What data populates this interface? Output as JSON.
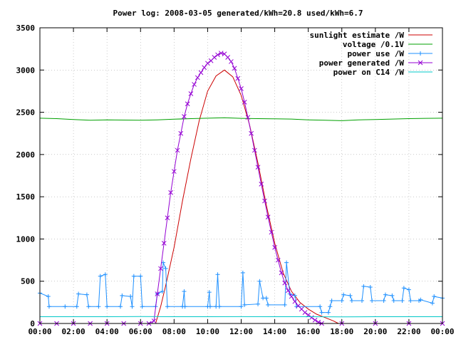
{
  "chart_data": {
    "type": "line",
    "title": "Power log: 2008-03-05 generated/kWh=20.8 used/kWh=6.7",
    "xlabel": "",
    "ylabel": "",
    "xlim": [
      0,
      24
    ],
    "ylim": [
      0,
      3500
    ],
    "x_ticks": [
      {
        "value": 0,
        "label": "00:00"
      },
      {
        "value": 2,
        "label": "02:00"
      },
      {
        "value": 4,
        "label": "04:00"
      },
      {
        "value": 6,
        "label": "06:00"
      },
      {
        "value": 8,
        "label": "08:00"
      },
      {
        "value": 10,
        "label": "10:00"
      },
      {
        "value": 12,
        "label": "12:00"
      },
      {
        "value": 14,
        "label": "14:00"
      },
      {
        "value": 16,
        "label": "16:00"
      },
      {
        "value": 18,
        "label": "18:00"
      },
      {
        "value": 20,
        "label": "20:00"
      },
      {
        "value": 22,
        "label": "22:00"
      },
      {
        "value": 24,
        "label": "00:00"
      }
    ],
    "y_ticks": [
      {
        "value": 0,
        "label": "0"
      },
      {
        "value": 500,
        "label": "500"
      },
      {
        "value": 1000,
        "label": "1000"
      },
      {
        "value": 1500,
        "label": "1500"
      },
      {
        "value": 2000,
        "label": "2000"
      },
      {
        "value": 2500,
        "label": "2500"
      },
      {
        "value": 3000,
        "label": "3000"
      },
      {
        "value": 3500,
        "label": "3500"
      }
    ],
    "grid": true,
    "legend_position": "top-right",
    "series": [
      {
        "name": "sunlight estimate /W",
        "color": "#cc0000",
        "style": "line",
        "points": [
          [
            6.9,
            0
          ],
          [
            7.2,
            200
          ],
          [
            7.5,
            450
          ],
          [
            8.0,
            900
          ],
          [
            8.5,
            1450
          ],
          [
            9.0,
            1950
          ],
          [
            9.5,
            2400
          ],
          [
            10.0,
            2750
          ],
          [
            10.5,
            2930
          ],
          [
            11.0,
            3000
          ],
          [
            11.5,
            2920
          ],
          [
            12.0,
            2700
          ],
          [
            12.5,
            2350
          ],
          [
            13.0,
            1900
          ],
          [
            13.5,
            1400
          ],
          [
            14.0,
            950
          ],
          [
            14.5,
            600
          ],
          [
            15.0,
            380
          ],
          [
            15.5,
            250
          ],
          [
            16.0,
            170
          ],
          [
            16.5,
            110
          ],
          [
            17.0,
            70
          ],
          [
            17.5,
            30
          ],
          [
            17.8,
            0
          ]
        ]
      },
      {
        "name": "voltage /0.1V",
        "color": "#00a000",
        "style": "line",
        "points": [
          [
            0,
            2430
          ],
          [
            1,
            2425
          ],
          [
            2,
            2415
          ],
          [
            3,
            2405
          ],
          [
            4,
            2410
          ],
          [
            5,
            2408
          ],
          [
            6,
            2405
          ],
          [
            7,
            2410
          ],
          [
            8,
            2418
          ],
          [
            9,
            2425
          ],
          [
            10,
            2430
          ],
          [
            11,
            2435
          ],
          [
            12,
            2428
          ],
          [
            13,
            2425
          ],
          [
            14,
            2422
          ],
          [
            15,
            2420
          ],
          [
            16,
            2410
          ],
          [
            17,
            2405
          ],
          [
            18,
            2400
          ],
          [
            19,
            2410
          ],
          [
            20,
            2415
          ],
          [
            21,
            2420
          ],
          [
            22,
            2425
          ],
          [
            23,
            2428
          ],
          [
            24,
            2430
          ]
        ]
      },
      {
        "name": "power use /W",
        "color": "#1e90ff",
        "style": "linepoints",
        "points": [
          [
            0.0,
            360
          ],
          [
            0.5,
            320
          ],
          [
            0.55,
            200
          ],
          [
            1.5,
            200
          ],
          [
            2.2,
            200
          ],
          [
            2.3,
            350
          ],
          [
            2.8,
            340
          ],
          [
            2.9,
            200
          ],
          [
            3.5,
            200
          ],
          [
            3.6,
            560
          ],
          [
            3.9,
            580
          ],
          [
            4.0,
            200
          ],
          [
            4.8,
            200
          ],
          [
            4.9,
            330
          ],
          [
            5.4,
            320
          ],
          [
            5.5,
            200
          ],
          [
            5.6,
            560
          ],
          [
            6.0,
            560
          ],
          [
            6.1,
            200
          ],
          [
            6.9,
            200
          ],
          [
            7.0,
            350
          ],
          [
            7.3,
            380
          ],
          [
            7.35,
            720
          ],
          [
            7.5,
            650
          ],
          [
            7.6,
            200
          ],
          [
            8.5,
            200
          ],
          [
            8.6,
            380
          ],
          [
            8.65,
            200
          ],
          [
            10.0,
            200
          ],
          [
            10.1,
            370
          ],
          [
            10.15,
            200
          ],
          [
            10.5,
            200
          ],
          [
            10.6,
            580
          ],
          [
            10.7,
            200
          ],
          [
            12.0,
            200
          ],
          [
            12.1,
            600
          ],
          [
            12.2,
            220
          ],
          [
            13.0,
            230
          ],
          [
            13.1,
            500
          ],
          [
            13.3,
            300
          ],
          [
            13.5,
            300
          ],
          [
            13.6,
            220
          ],
          [
            14.6,
            220
          ],
          [
            14.7,
            720
          ],
          [
            14.9,
            350
          ],
          [
            15.2,
            330
          ],
          [
            15.3,
            200
          ],
          [
            16.7,
            200
          ],
          [
            16.8,
            130
          ],
          [
            17.2,
            130
          ],
          [
            17.3,
            200
          ],
          [
            17.4,
            270
          ],
          [
            18.0,
            270
          ],
          [
            18.1,
            340
          ],
          [
            18.5,
            330
          ],
          [
            18.6,
            270
          ],
          [
            19.2,
            270
          ],
          [
            19.3,
            440
          ],
          [
            19.7,
            430
          ],
          [
            19.8,
            270
          ],
          [
            20.5,
            270
          ],
          [
            20.6,
            340
          ],
          [
            21.0,
            330
          ],
          [
            21.1,
            270
          ],
          [
            21.6,
            270
          ],
          [
            21.7,
            420
          ],
          [
            22.0,
            400
          ],
          [
            22.1,
            270
          ],
          [
            22.6,
            270
          ],
          [
            22.7,
            280
          ],
          [
            23.4,
            240
          ],
          [
            23.5,
            320
          ],
          [
            24.0,
            300
          ]
        ]
      },
      {
        "name": "power generated /W",
        "color": "#9400d3",
        "style": "linepoints",
        "points": [
          [
            0,
            0
          ],
          [
            1,
            0
          ],
          [
            2,
            0
          ],
          [
            3,
            0
          ],
          [
            4,
            0
          ],
          [
            5,
            0
          ],
          [
            6,
            0
          ],
          [
            6.5,
            0
          ],
          [
            6.8,
            30
          ],
          [
            7.0,
            350
          ],
          [
            7.2,
            650
          ],
          [
            7.4,
            950
          ],
          [
            7.6,
            1250
          ],
          [
            7.8,
            1550
          ],
          [
            8.0,
            1800
          ],
          [
            8.2,
            2050
          ],
          [
            8.4,
            2250
          ],
          [
            8.6,
            2450
          ],
          [
            8.8,
            2600
          ],
          [
            9.0,
            2720
          ],
          [
            9.2,
            2830
          ],
          [
            9.4,
            2910
          ],
          [
            9.6,
            2970
          ],
          [
            9.8,
            3030
          ],
          [
            10.0,
            3080
          ],
          [
            10.2,
            3110
          ],
          [
            10.4,
            3150
          ],
          [
            10.6,
            3180
          ],
          [
            10.8,
            3200
          ],
          [
            11.0,
            3190
          ],
          [
            11.2,
            3150
          ],
          [
            11.4,
            3100
          ],
          [
            11.6,
            3020
          ],
          [
            11.8,
            2900
          ],
          [
            12.0,
            2780
          ],
          [
            12.2,
            2620
          ],
          [
            12.4,
            2440
          ],
          [
            12.6,
            2250
          ],
          [
            12.8,
            2050
          ],
          [
            13.0,
            1850
          ],
          [
            13.2,
            1650
          ],
          [
            13.4,
            1450
          ],
          [
            13.6,
            1260
          ],
          [
            13.8,
            1080
          ],
          [
            14.0,
            900
          ],
          [
            14.2,
            750
          ],
          [
            14.4,
            600
          ],
          [
            14.6,
            480
          ],
          [
            14.8,
            390
          ],
          [
            15.0,
            320
          ],
          [
            15.2,
            260
          ],
          [
            15.4,
            210
          ],
          [
            15.6,
            170
          ],
          [
            15.8,
            130
          ],
          [
            16.0,
            100
          ],
          [
            16.2,
            70
          ],
          [
            16.4,
            40
          ],
          [
            16.6,
            15
          ],
          [
            16.8,
            0
          ],
          [
            18,
            0
          ],
          [
            20,
            0
          ],
          [
            22,
            0
          ],
          [
            24,
            0
          ]
        ]
      },
      {
        "name": "power on C14 /W",
        "color": "#00c8c8",
        "style": "line",
        "points": [
          [
            0,
            80
          ],
          [
            2,
            80
          ],
          [
            4,
            80
          ],
          [
            6,
            82
          ],
          [
            8,
            80
          ],
          [
            10,
            80
          ],
          [
            12,
            81
          ],
          [
            14,
            80
          ],
          [
            16,
            80
          ],
          [
            18,
            78
          ],
          [
            20,
            80
          ],
          [
            22,
            80
          ],
          [
            24,
            80
          ]
        ]
      }
    ]
  }
}
